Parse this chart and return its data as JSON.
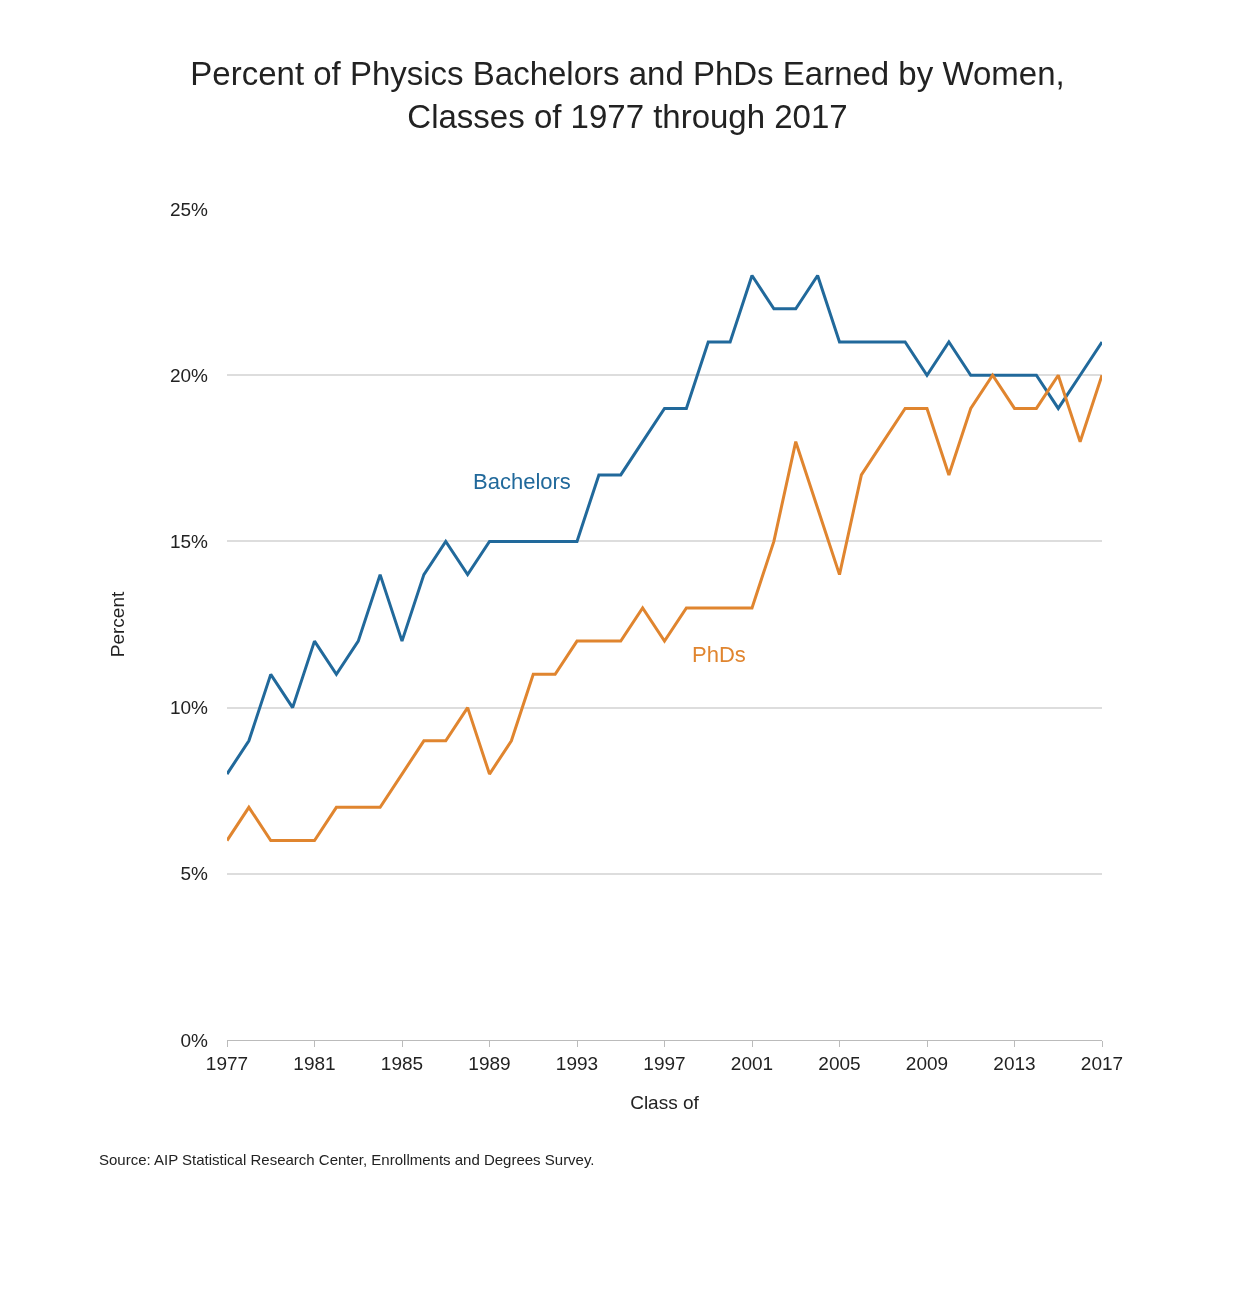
{
  "chart_data": {
    "type": "line",
    "title": "Percent of Physics Bachelors and PhDs Earned by Women,\nClasses of 1977 through 2017",
    "xlabel": "Class of",
    "ylabel": "Percent",
    "x": [
      1977,
      1978,
      1979,
      1980,
      1981,
      1982,
      1983,
      1984,
      1985,
      1986,
      1987,
      1988,
      1989,
      1990,
      1991,
      1992,
      1993,
      1994,
      1995,
      1996,
      1997,
      1998,
      1999,
      2000,
      2001,
      2002,
      2003,
      2004,
      2005,
      2006,
      2007,
      2008,
      2009,
      2010,
      2011,
      2012,
      2013,
      2014,
      2015,
      2016,
      2017
    ],
    "series": [
      {
        "name": "Bachelors",
        "color": "#21699b",
        "values": [
          8,
          9,
          11,
          10,
          12,
          11,
          12,
          14,
          12,
          14,
          15,
          14,
          15,
          15,
          15,
          15,
          15,
          17,
          17,
          18,
          19,
          19,
          21,
          21,
          23,
          22,
          22,
          23,
          21,
          21,
          21,
          21,
          20,
          21,
          20,
          20,
          20,
          20,
          19,
          20,
          21
        ]
      },
      {
        "name": "PhDs",
        "color": "#e0852f",
        "values": [
          6,
          7,
          6,
          6,
          6,
          7,
          7,
          7,
          8,
          9,
          9,
          10,
          8,
          9,
          11,
          11,
          12,
          12,
          12,
          13,
          12,
          13,
          13,
          13,
          13,
          15,
          18,
          16,
          14,
          17,
          18,
          19,
          19,
          17,
          19,
          20,
          19,
          19,
          20,
          18,
          20
        ]
      }
    ],
    "xlim": [
      1977,
      2017
    ],
    "xticks": [
      1977,
      1981,
      1985,
      1989,
      1993,
      1997,
      2001,
      2005,
      2009,
      2013,
      2017
    ],
    "ylim": [
      0,
      25
    ],
    "yticks": [
      {
        "value": 0,
        "label": "0%"
      },
      {
        "value": 5,
        "label": "5%"
      },
      {
        "value": 10,
        "label": "10%"
      },
      {
        "value": 15,
        "label": "15%"
      },
      {
        "value": 20,
        "label": "20%"
      },
      {
        "value": 25,
        "label": "25%"
      }
    ],
    "grid": "y",
    "legend": false,
    "marker": "none",
    "line_style": "solid",
    "annotations": [
      "Source: AIP Statistical Research Center, Enrollments and Degrees Survey."
    ]
  }
}
